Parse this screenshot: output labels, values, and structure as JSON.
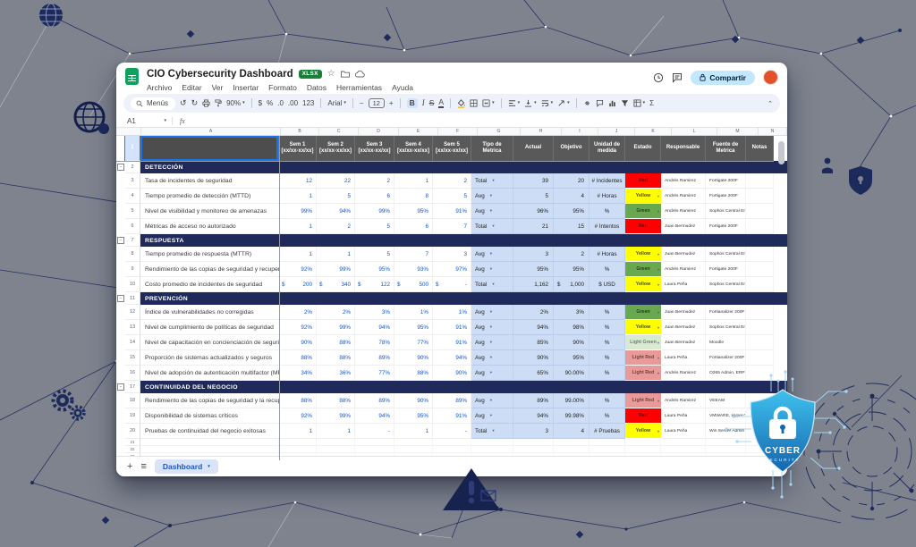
{
  "titlebar": {
    "title": "CIO Cybersecurity Dashboard",
    "file_badge": "XLSX",
    "share_label": "Compartir"
  },
  "menus": [
    "Archivo",
    "Editar",
    "Ver",
    "Insertar",
    "Formato",
    "Datos",
    "Herramientas",
    "Ayuda"
  ],
  "toolbar": {
    "search_label": "Menús",
    "zoom": "90%",
    "format_buttons": [
      "$",
      "%",
      ".0",
      ".00",
      "123"
    ],
    "font": "Arial",
    "font_size": "12",
    "bold": "B",
    "italic": "I",
    "strike": "S",
    "text_color": "A",
    "sigma": "Σ"
  },
  "formula_bar": {
    "name_box": "A1",
    "fx": "fx"
  },
  "sheet": {
    "col_letters": [
      "A",
      "B",
      "C",
      "D",
      "E",
      "F",
      "G",
      "H",
      "I",
      "J",
      "K",
      "L",
      "M",
      "N"
    ],
    "header": {
      "sem": [
        "Sem 1\n[xx/xx-xx/xx]",
        "Sem 2\n[xx/xx-xx/xx]",
        "Sem 3\n[xx/xx-xx/xx]",
        "Sem 4\n[xx/xx-xx/xx]",
        "Sem 5\n[xx/xx-xx/xx]"
      ],
      "tipo": "Tipo de\nMetrica",
      "actual": "Actual",
      "objetivo": "Objetivo",
      "unidad": "Unidad de\nmedida",
      "estado": "Estado",
      "responsable": "Responsable",
      "fuente": "Fuente de\nMetrica",
      "notas": "Notas"
    },
    "rows": [
      {
        "n": 2,
        "type": "section",
        "label": "DETECCIÓN"
      },
      {
        "n": 3,
        "type": "data",
        "name": "Tasa de incidentes de seguridad",
        "sem": [
          "12",
          "22",
          "2",
          "1",
          "2"
        ],
        "tipo": "Total",
        "actual": "39",
        "objetivo": "20",
        "unidad": "# Incidentes",
        "estado": "Red",
        "resp": "Andrés Ramirez",
        "fuente": "Fortigate 200F",
        "notas": ""
      },
      {
        "n": 4,
        "type": "data",
        "name": "Tiempo promedio de detección (MTTD)",
        "sem": [
          "1",
          "5",
          "6",
          "8",
          "5"
        ],
        "tipo": "Avg",
        "actual": "5",
        "objetivo": "4",
        "unidad": "# Horas",
        "estado": "Yellow",
        "resp": "Andrés Ramirez",
        "fuente": "Fortigate 200F",
        "notas": ""
      },
      {
        "n": 5,
        "type": "data",
        "name": "Nivel de visibilidad y monitoreo de amenazas",
        "sem": [
          "99%",
          "94%",
          "99%",
          "95%",
          "91%"
        ],
        "tipo": "Avg",
        "actual": "96%",
        "objetivo": "95%",
        "unidad": "%",
        "estado": "Green",
        "resp": "Andrés Ramirez",
        "fuente": "Sophos Central Endpoint",
        "notas": ""
      },
      {
        "n": 6,
        "type": "data",
        "name": "Métricas de acceso no autorizado",
        "sem": [
          "1",
          "2",
          "5",
          "6",
          "7"
        ],
        "tipo": "Total",
        "actual": "21",
        "objetivo": "15",
        "unidad": "# Intentos",
        "estado": "Red",
        "resp": "Juan Bermudez",
        "fuente": "Fortigate 200F",
        "notas": ""
      },
      {
        "n": 7,
        "type": "section",
        "label": "RESPUESTA"
      },
      {
        "n": 8,
        "type": "data",
        "name": "Tiempo promedio de respuesta (MTTR)",
        "sem": [
          "1",
          "1",
          "5",
          "7",
          "3"
        ],
        "tipo": "Avg",
        "actual": "3",
        "objetivo": "2",
        "unidad": "# Horas",
        "estado": "Yellow",
        "resp": "Juan Bermudez",
        "fuente": "Sophos Central Endpoint",
        "notas": ""
      },
      {
        "n": 9,
        "type": "data",
        "name": "Rendimiento de las copias de seguridad y recuperaci",
        "sem": [
          "92%",
          "99%",
          "95%",
          "93%",
          "97%"
        ],
        "tipo": "Avg",
        "actual": "95%",
        "objetivo": "95%",
        "unidad": "%",
        "estado": "Green",
        "resp": "Andrés Ramirez",
        "fuente": "Fortigate 200F",
        "notas": ""
      },
      {
        "n": 10,
        "type": "data",
        "name": "Costo promedio de incidentes de seguridad",
        "sem": [
          "$ 200",
          "$ 340",
          "$ 122",
          "$ 500",
          "$ -"
        ],
        "tipo": "Total",
        "actual": "1,162",
        "objetivo": "$ 1,000",
        "unidad": "$ USD",
        "estado": "Yellow",
        "resp": "Laura Peña",
        "fuente": "Sophos Central Endpoint",
        "notas": ""
      },
      {
        "n": 11,
        "type": "section",
        "label": "PREVENCIÓN"
      },
      {
        "n": 12,
        "type": "data",
        "name": "Índice de vulnerabilidades no corregidas",
        "sem": [
          "2%",
          "2%",
          "3%",
          "1%",
          "1%"
        ],
        "tipo": "Avg",
        "actual": "2%",
        "objetivo": "3%",
        "unidad": "%",
        "estado": "Green",
        "resp": "Juan Bermudez",
        "fuente": "Fortianalizer 200F",
        "notas": ""
      },
      {
        "n": 13,
        "type": "data",
        "name": "Nivel de cumplimiento de políticas de seguridad",
        "sem": [
          "92%",
          "99%",
          "94%",
          "95%",
          "91%"
        ],
        "tipo": "Avg",
        "actual": "94%",
        "objetivo": "98%",
        "unidad": "%",
        "estado": "Yellow",
        "resp": "Juan Bermudez",
        "fuente": "Sophos Central Endpoint",
        "notas": ""
      },
      {
        "n": 14,
        "type": "data",
        "name": "Nivel de capacitación en concienciación de seguridad",
        "sem": [
          "90%",
          "88%",
          "78%",
          "77%",
          "91%"
        ],
        "tipo": "Avg",
        "actual": "85%",
        "objetivo": "90%",
        "unidad": "%",
        "estado": "Light Green",
        "resp": "Juan Bermudez",
        "fuente": "Moodle",
        "notas": ""
      },
      {
        "n": 15,
        "type": "data",
        "name": "Proporción de sistemas actualizados y seguros",
        "sem": [
          "88%",
          "88%",
          "89%",
          "90%",
          "94%"
        ],
        "tipo": "Avg",
        "actual": "90%",
        "objetivo": "95%",
        "unidad": "%",
        "estado": "Light Red",
        "resp": "Laura Peña",
        "fuente": "Fortianalizer 200F",
        "notas": ""
      },
      {
        "n": 16,
        "type": "data",
        "name": "Nivel de adopción de autenticación multifactor (MFA)",
        "sem": [
          "34%",
          "36%",
          "77%",
          "88%",
          "90%"
        ],
        "tipo": "Avg",
        "actual": "65%",
        "objetivo": "90.00%",
        "unidad": "%",
        "estado": "Light Red",
        "resp": "Andrés Ramirez",
        "fuente": "O365 Admin, ERP Admin,",
        "notas": ""
      },
      {
        "n": 17,
        "type": "section",
        "label": "CONTINUIDAD DEL NEGOCIO"
      },
      {
        "n": 18,
        "type": "data",
        "name": "Rendimiento de las copias de seguridad y la recuper",
        "sem": [
          "88%",
          "88%",
          "89%",
          "90%",
          "89%"
        ],
        "tipo": "Avg",
        "actual": "89%",
        "objetivo": "99.00%",
        "unidad": "%",
        "estado": "Light Red",
        "resp": "Andrés Ramirez",
        "fuente": "VEEAM",
        "notas": ""
      },
      {
        "n": 19,
        "type": "data",
        "name": "Disponibilidad de sistemas críticos",
        "sem": [
          "92%",
          "99%",
          "94%",
          "95%",
          "91%"
        ],
        "tipo": "Avg",
        "actual": "94%",
        "objetivo": "99.98%",
        "unidad": "%",
        "estado": "Red",
        "resp": "Laura Peña",
        "fuente": "VMWARE, Hyper-V",
        "notas": ""
      },
      {
        "n": 20,
        "type": "data",
        "name": "Pruebas de continuidad del negocio exitosas",
        "sem": [
          "1",
          "1",
          "-",
          "1",
          "-"
        ],
        "tipo": "Total",
        "actual": "3",
        "objetivo": "4",
        "unidad": "# Pruebas",
        "estado": "Yellow",
        "resp": "Laura Peña",
        "fuente": "Win Server Admin",
        "notas": ""
      },
      {
        "n": 21,
        "type": "empty"
      },
      {
        "n": 22,
        "type": "empty"
      },
      {
        "n": 23,
        "type": "empty"
      }
    ],
    "tab": "Dashboard"
  },
  "estado_colors": {
    "Red": {
      "bg": "#ff0000",
      "fg": "#6b0000"
    },
    "Yellow": {
      "bg": "#ffff00",
      "fg": "#4d4d00"
    },
    "Green": {
      "bg": "#6aa84f",
      "fg": "#1e3d18"
    },
    "Light Green": {
      "bg": "#d9ead3",
      "fg": "#6f816d"
    },
    "Light Red": {
      "bg": "#ea9999",
      "fg": "#6e4343"
    }
  },
  "badge": {
    "line1": "CYBER",
    "line2": "SECURITY"
  },
  "theme": {
    "background": "#7e838e",
    "section_row": "#1f2a5b",
    "header_row": "#595959",
    "frozen_cell": "#4d4d4d",
    "metric_value_blue": "#1155cc",
    "light_blue_cells": "#cdddf5",
    "share_pill": "#c2e7ff",
    "sheets_green": "#12a05e",
    "badge_blue_top": "#3fc1ee",
    "badge_blue_bottom": "#1566ad",
    "network_navy": "#1d2a5c"
  }
}
